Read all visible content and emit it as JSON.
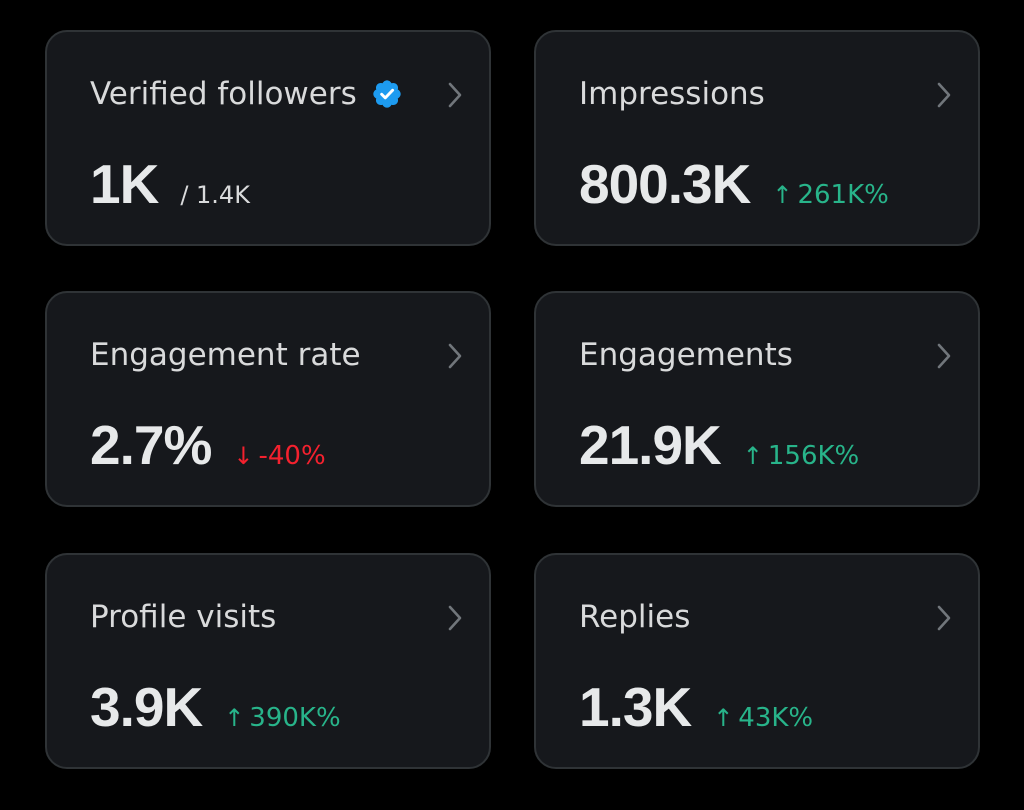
{
  "colors": {
    "background": "#000000",
    "card_background": "#16181c",
    "card_border": "#2f3336",
    "positive": "#28b48a",
    "negative": "#f4212e",
    "verified_badge": "#1d9bf0"
  },
  "cards": [
    {
      "title": "Verified followers",
      "verified_icon": "verified-badge-icon",
      "value": "1K",
      "secondary": "/ 1.4K",
      "chevron_icon": "chevron-right-icon"
    },
    {
      "title": "Impressions",
      "value": "800.3K",
      "change": "261K%",
      "change_arrow": "↑",
      "change_direction": "up",
      "chevron_icon": "chevron-right-icon"
    },
    {
      "title": "Engagement rate",
      "value": "2.7%",
      "change": "-40%",
      "change_arrow": "↓",
      "change_direction": "down",
      "chevron_icon": "chevron-right-icon"
    },
    {
      "title": "Engagements",
      "value": "21.9K",
      "change": "156K%",
      "change_arrow": "↑",
      "change_direction": "up",
      "chevron_icon": "chevron-right-icon"
    },
    {
      "title": "Profile visits",
      "value": "3.9K",
      "change": "390K%",
      "change_arrow": "↑",
      "change_direction": "up",
      "chevron_icon": "chevron-right-icon"
    },
    {
      "title": "Replies",
      "value": "1.3K",
      "change": "43K%",
      "change_arrow": "↑",
      "change_direction": "up",
      "chevron_icon": "chevron-right-icon"
    }
  ]
}
